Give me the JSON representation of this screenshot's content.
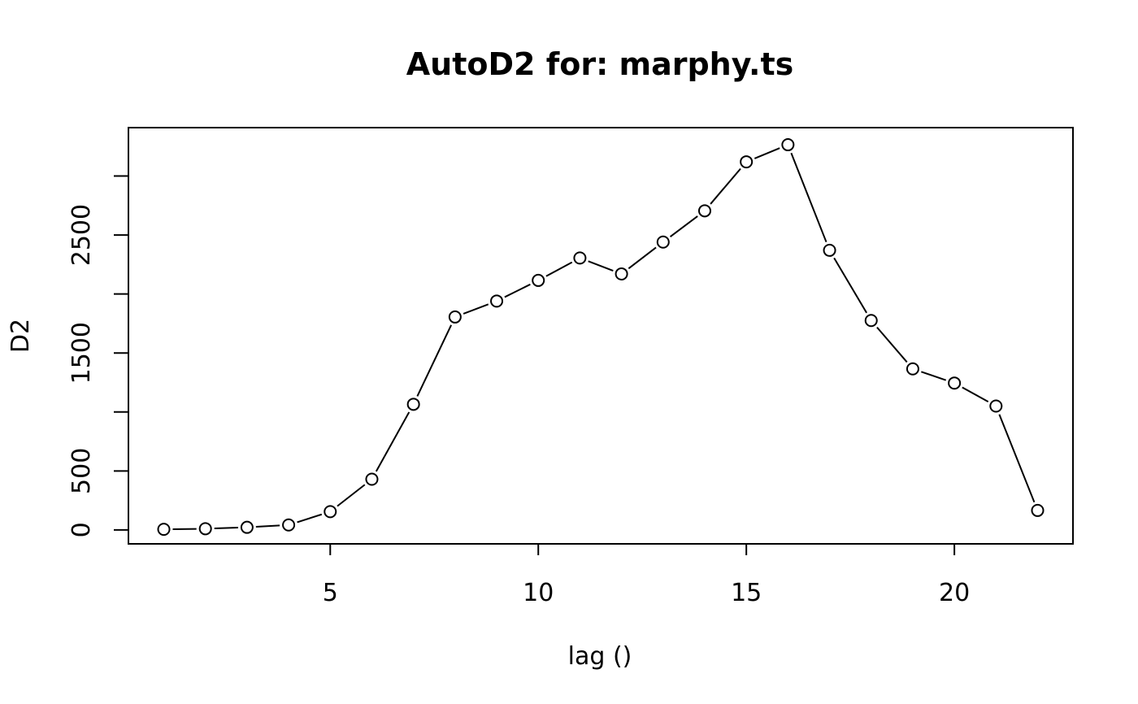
{
  "chart_data": {
    "type": "line",
    "title": "AutoD2 for: marphy.ts",
    "xlabel": "lag ()",
    "ylabel": "D2",
    "x": [
      1,
      2,
      3,
      4,
      5,
      6,
      7,
      8,
      9,
      10,
      11,
      12,
      13,
      14,
      15,
      16,
      17,
      18,
      19,
      20,
      21,
      22
    ],
    "series": [
      {
        "values": [
          5,
          10,
          22,
          42,
          155,
          430,
          1065,
          1805,
          1940,
          2115,
          2305,
          2170,
          2440,
          2705,
          3120,
          3265,
          2370,
          1775,
          1365,
          1245,
          1050,
          165
        ]
      }
    ],
    "xlim": [
      0.15,
      22.85
    ],
    "ylim": [
      -118,
      3410
    ],
    "xticks": [
      5,
      10,
      15,
      20
    ],
    "xtick_labels": [
      "5",
      "10",
      "15",
      "20"
    ],
    "yticks": [
      0,
      500,
      1000,
      1500,
      2000,
      2500,
      3000
    ],
    "ytick_labels": [
      "0",
      "500",
      "",
      "1500",
      "",
      "2500",
      ""
    ],
    "grid": false,
    "legend": "none",
    "marker": "open-circle",
    "line_style": "segments-between-points"
  }
}
